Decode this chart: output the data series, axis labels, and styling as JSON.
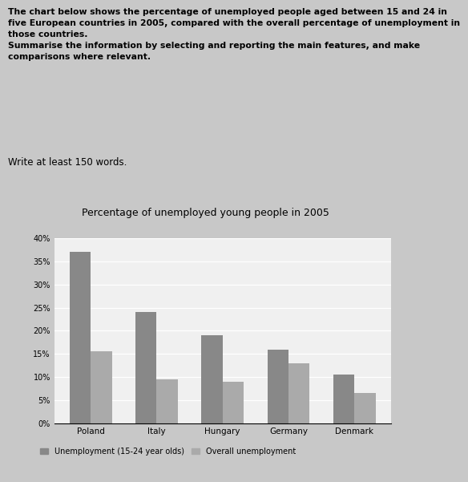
{
  "title": "Percentage of unemployed young people in 2005",
  "desc_text": "The chart below shows the percentage of unemployed people aged between 15 and 24 in\nfive European countries in 2005, compared with the overall percentage of unemployment in\nthose countries.\nSummarise the information by selecting and reporting the main features, and make\ncomparisons where relevant.",
  "write_prompt": "Write at least 150 words.",
  "countries": [
    "Poland",
    "Italy",
    "Hungary",
    "Germany",
    "Denmark"
  ],
  "youth_unemployment": [
    37,
    24,
    19,
    16,
    10.5
  ],
  "overall_unemployment": [
    15.5,
    9.5,
    9,
    13,
    6.5
  ],
  "bar_color_youth": "#888888",
  "bar_color_overall": "#aaaaaa",
  "legend_youth": "Unemployment (15-24 year olds)",
  "legend_overall": "Overall unemployment",
  "ylim": [
    0,
    40
  ],
  "yticks": [
    0,
    5,
    10,
    15,
    20,
    25,
    30,
    35,
    40
  ],
  "ytick_labels": [
    "0%",
    "5%",
    "10%",
    "15%",
    "20%",
    "25%",
    "30%",
    "35%",
    "40%"
  ],
  "page_bg": "#c8c8c8",
  "chart_area_bg": "#e8e8e8",
  "chart_plot_bg": "#f0f0f0"
}
